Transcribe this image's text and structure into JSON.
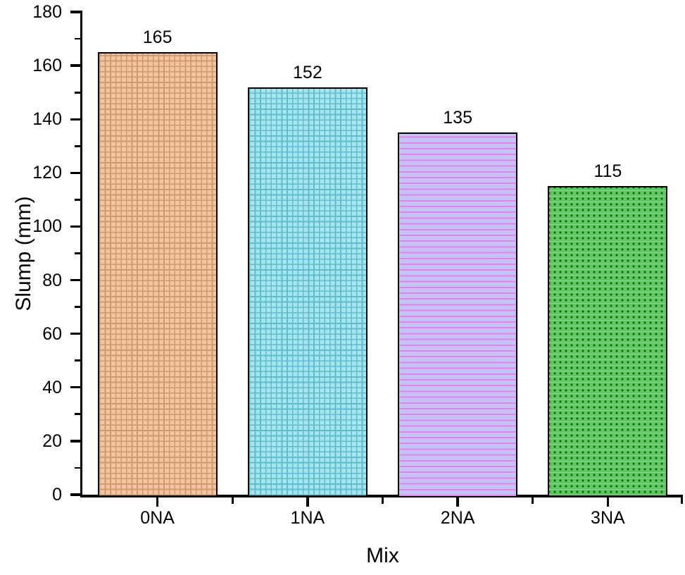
{
  "chart_data": {
    "type": "bar",
    "title": "",
    "xlabel": "Mix",
    "ylabel": "Slump (mm)",
    "categories": [
      "0NA",
      "1NA",
      "2NA",
      "3NA"
    ],
    "values": [
      165,
      152,
      135,
      115
    ],
    "value_labels": [
      "165",
      "152",
      "135",
      "115"
    ],
    "ylim": [
      0,
      180
    ],
    "y_major_ticks": [
      0,
      20,
      40,
      60,
      80,
      100,
      120,
      140,
      160,
      180
    ],
    "y_minor_ticks": [
      10,
      30,
      50,
      70,
      90,
      110,
      130,
      150,
      170
    ],
    "y_tick_labels": [
      "0",
      "20",
      "40",
      "60",
      "80",
      "100",
      "120",
      "140",
      "160",
      "180"
    ],
    "grid": false,
    "legend": "none",
    "axis_color": "#000000",
    "background_color": "#ffffff",
    "bar_border_color": "#000000",
    "bar_styles": [
      {
        "pattern": "crosshatch",
        "fill": "#F7C39E",
        "pattern_color": "#C99B70"
      },
      {
        "pattern": "crosshatch",
        "fill": "#A6E4F0",
        "pattern_color": "#5FBECC"
      },
      {
        "pattern": "hlines",
        "fill": "#C1C6F4",
        "pattern_color": "#EE7DEF"
      },
      {
        "pattern": "dots",
        "fill": "#57CA5B",
        "pattern_color": "#14661B",
        "pattern_color2": "#9EC89E"
      }
    ]
  }
}
